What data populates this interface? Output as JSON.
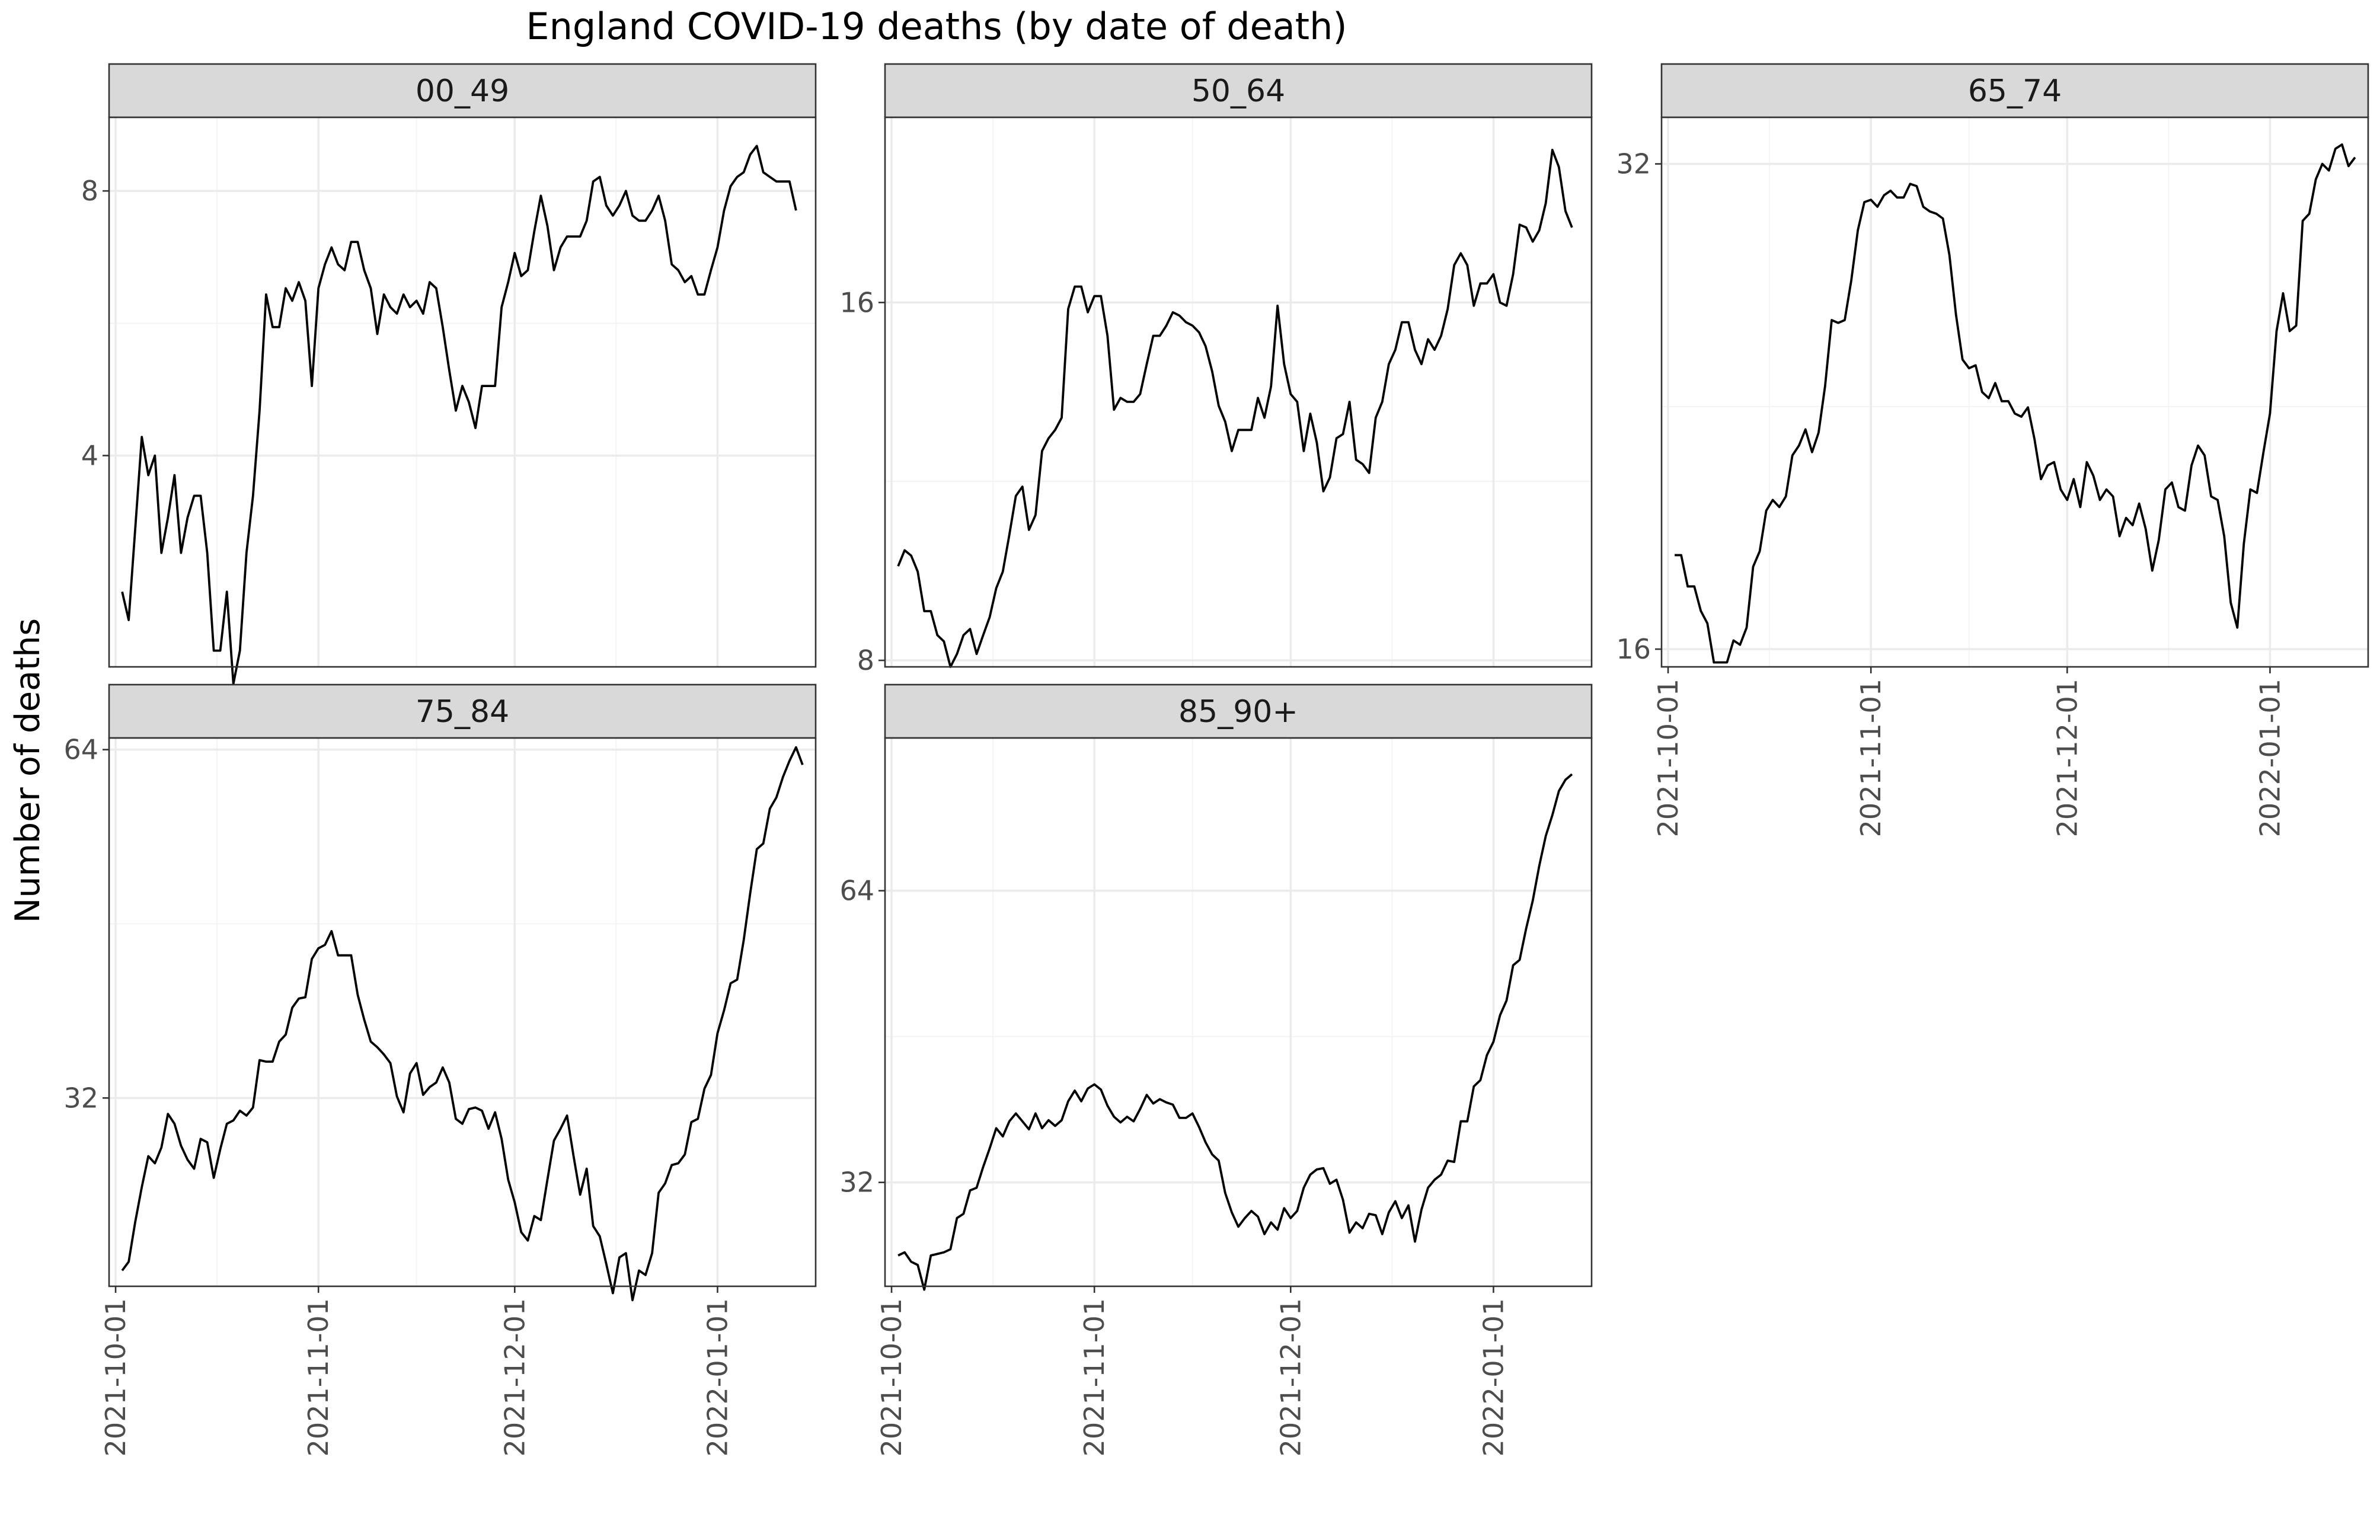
{
  "chart_data": {
    "type": "line",
    "title": "England COVID-19 deaths (by date of death)",
    "ylabel": "Number of deaths",
    "xlabel": "",
    "y_scale": "log",
    "grid": true,
    "legend": "none",
    "colors": {
      "line": "#000000",
      "strip": "#d9d9d9",
      "grid": "#ebebeb"
    },
    "x_ticks": [
      "2021-10-01",
      "2021-11-01",
      "2021-12-01",
      "2022-01-01"
    ],
    "x_range": [
      "2021-09-30",
      "2022-01-16"
    ],
    "panels": [
      {
        "name": "00_49",
        "y_ticks": [
          4,
          8
        ],
        "ylim": [
          2.3,
          9.7
        ],
        "start": "2021-10-02",
        "values": [
          2.8,
          2.6,
          3.3,
          4.2,
          3.8,
          4,
          3.1,
          3.4,
          3.8,
          3.1,
          3.4,
          3.6,
          3.6,
          3.1,
          2.4,
          2.4,
          2.8,
          2.2,
          2.4,
          3.1,
          3.6,
          4.5,
          6.1,
          5.6,
          5.6,
          6.2,
          6,
          6.3,
          6,
          4.8,
          6.2,
          6.6,
          6.9,
          6.6,
          6.5,
          7,
          7,
          6.5,
          6.2,
          5.5,
          6.1,
          5.9,
          5.8,
          6.1,
          5.9,
          6,
          5.8,
          6.3,
          6.2,
          5.6,
          5,
          4.5,
          4.8,
          4.6,
          4.3,
          4.8,
          4.8,
          4.8,
          5.9,
          6.3,
          6.8,
          6.4,
          6.5,
          7.2,
          7.9,
          7.3,
          6.5,
          6.9,
          7.1,
          7.1,
          7.1,
          7.4,
          8.2,
          8.3,
          7.7,
          7.5,
          7.7,
          8,
          7.5,
          7.4,
          7.4,
          7.6,
          7.9,
          7.4,
          6.6,
          6.5,
          6.3,
          6.4,
          6.1,
          6.1,
          6.5,
          6.9,
          7.6,
          8.1,
          8.3,
          8.4,
          8.8,
          9,
          8.4,
          8.3,
          8.2,
          8.2,
          8.2,
          7.6
        ]
      },
      {
        "name": "50_64",
        "y_ticks": [
          8,
          16
        ],
        "ylim": [
          7.9,
          22.9
        ],
        "start": "2021-10-02",
        "values": [
          9.6,
          9.9,
          9.8,
          9.5,
          8.8,
          8.8,
          8.4,
          8.3,
          7.9,
          8.1,
          8.4,
          8.5,
          8.1,
          8.4,
          8.7,
          9.2,
          9.5,
          10.2,
          11,
          11.2,
          10.3,
          10.6,
          12,
          12.3,
          12.5,
          12.8,
          15.8,
          16.5,
          16.5,
          15.7,
          16.2,
          16.2,
          15,
          13,
          13.3,
          13.2,
          13.2,
          13.4,
          14.2,
          15,
          15,
          15.3,
          15.7,
          15.6,
          15.4,
          15.3,
          15.1,
          14.7,
          14,
          13.1,
          12.7,
          12,
          12.5,
          12.5,
          12.5,
          13.3,
          12.8,
          13.6,
          15.9,
          14.2,
          13.4,
          13.2,
          12,
          12.9,
          12.2,
          11.1,
          11.4,
          12.3,
          12.4,
          13.2,
          11.8,
          11.7,
          11.5,
          12.8,
          13.2,
          14.2,
          14.6,
          15.4,
          15.4,
          14.6,
          14.2,
          14.9,
          14.6,
          15,
          15.8,
          17.2,
          17.6,
          17.2,
          15.9,
          16.6,
          16.6,
          16.9,
          16,
          15.9,
          16.9,
          18.6,
          18.5,
          18,
          18.4,
          19.4,
          21.5,
          20.8,
          19.1,
          18.5
        ]
      },
      {
        "name": "65_74",
        "y_ticks": [
          16,
          32
        ],
        "ylim": [
          15.6,
          34.2
        ],
        "start": "2021-10-02",
        "values": [
          18.3,
          18.3,
          17.5,
          17.5,
          16.9,
          16.6,
          15.7,
          15.7,
          15.7,
          16.2,
          16.1,
          16.5,
          18,
          18.4,
          19.5,
          19.8,
          19.6,
          19.9,
          21.1,
          21.4,
          21.9,
          21.2,
          21.8,
          23.3,
          25.6,
          25.5,
          25.6,
          27.1,
          29.1,
          30.3,
          30.4,
          30.1,
          30.6,
          30.8,
          30.5,
          30.5,
          31.1,
          31,
          30.1,
          29.9,
          29.8,
          29.6,
          28.1,
          25.8,
          24.2,
          23.9,
          24,
          23.1,
          22.9,
          23.4,
          22.8,
          22.8,
          22.4,
          22.3,
          22.6,
          21.6,
          20.4,
          20.8,
          20.9,
          20.1,
          19.8,
          20.4,
          19.6,
          20.9,
          20.5,
          19.8,
          20.1,
          19.9,
          18.8,
          19.3,
          19.1,
          19.7,
          19,
          17.9,
          18.7,
          20.1,
          20.3,
          19.6,
          19.5,
          20.8,
          21.4,
          21.1,
          19.9,
          19.8,
          18.8,
          17.1,
          16.5,
          18.6,
          20.1,
          20,
          21.2,
          22.4,
          25.2,
          26.6,
          25.2,
          25.4,
          29.5,
          29.8,
          31.3,
          32,
          31.7,
          32.7,
          32.9,
          31.9,
          32.3
        ]
      },
      {
        "name": "75_84",
        "y_ticks": [
          32,
          64
        ],
        "ylim": [
          22,
          65.5
        ],
        "start": "2021-10-02",
        "values": [
          22.7,
          23.1,
          25,
          26.8,
          28.5,
          28.1,
          29,
          31,
          30.4,
          29.1,
          28.3,
          27.8,
          29.5,
          29.3,
          27.3,
          28.9,
          30.4,
          30.6,
          31.2,
          30.9,
          31.4,
          34.5,
          34.4,
          34.4,
          35.8,
          36.3,
          38.3,
          39,
          39.1,
          42.2,
          43.1,
          43.4,
          44.6,
          42.5,
          42.5,
          42.5,
          39.3,
          37.4,
          35.8,
          35.4,
          34.9,
          34.3,
          32.1,
          31.1,
          33.6,
          34.3,
          32.2,
          32.7,
          33,
          34,
          33,
          30.7,
          30.4,
          31.3,
          31.4,
          31.2,
          30.1,
          31.1,
          29.5,
          27.2,
          26,
          24.5,
          24.1,
          25.3,
          25.1,
          27.2,
          29.4,
          30.1,
          30.9,
          28.5,
          26.4,
          27.8,
          24.8,
          24.3,
          23,
          21.7,
          23.3,
          23.5,
          21.4,
          22.7,
          22.5,
          23.5,
          26.5,
          27,
          28,
          28.1,
          28.6,
          30.5,
          30.7,
          32.6,
          33.5,
          36.4,
          38.1,
          40.2,
          40.5,
          43.8,
          48.1,
          52.5,
          53.1,
          56.9,
          58.2,
          60.6,
          62.6,
          64.3,
          62.1
        ]
      },
      {
        "name": "85_90+",
        "y_ticks": [
          32,
          64
        ],
        "ylim": [
          25,
          92
        ],
        "start": "2021-10-02",
        "values": [
          26.9,
          27.1,
          26.5,
          26.3,
          24.8,
          26.9,
          27,
          27.1,
          27.3,
          29.4,
          29.7,
          31.4,
          31.6,
          33.2,
          34.7,
          36.4,
          35.7,
          37,
          37.7,
          37,
          36.3,
          37.7,
          36.4,
          37.1,
          36.6,
          37.1,
          38.8,
          39.8,
          38.8,
          40,
          40.4,
          39.9,
          38.4,
          37.4,
          36.9,
          37.4,
          37,
          38.1,
          39.4,
          38.6,
          39,
          38.7,
          38.5,
          37.3,
          37.3,
          37.7,
          36.5,
          35.2,
          34.2,
          33.7,
          31.2,
          29.8,
          28.8,
          29.4,
          29.9,
          29.5,
          28.3,
          29.1,
          28.6,
          30.1,
          29.4,
          29.9,
          31.6,
          32.6,
          33,
          33.1,
          31.9,
          32.2,
          30.7,
          28.4,
          29.1,
          28.7,
          29.7,
          29.6,
          28.3,
          29.8,
          30.6,
          29.4,
          30.3,
          27.8,
          30,
          31.6,
          32.2,
          32.6,
          33.7,
          33.6,
          37,
          37,
          40.2,
          40.8,
          43.3,
          44.7,
          47.6,
          49.3,
          53.6,
          54.3,
          58.5,
          62.5,
          67.9,
          72.9,
          76.6,
          81.1,
          83.3,
          84.4
        ]
      }
    ]
  }
}
